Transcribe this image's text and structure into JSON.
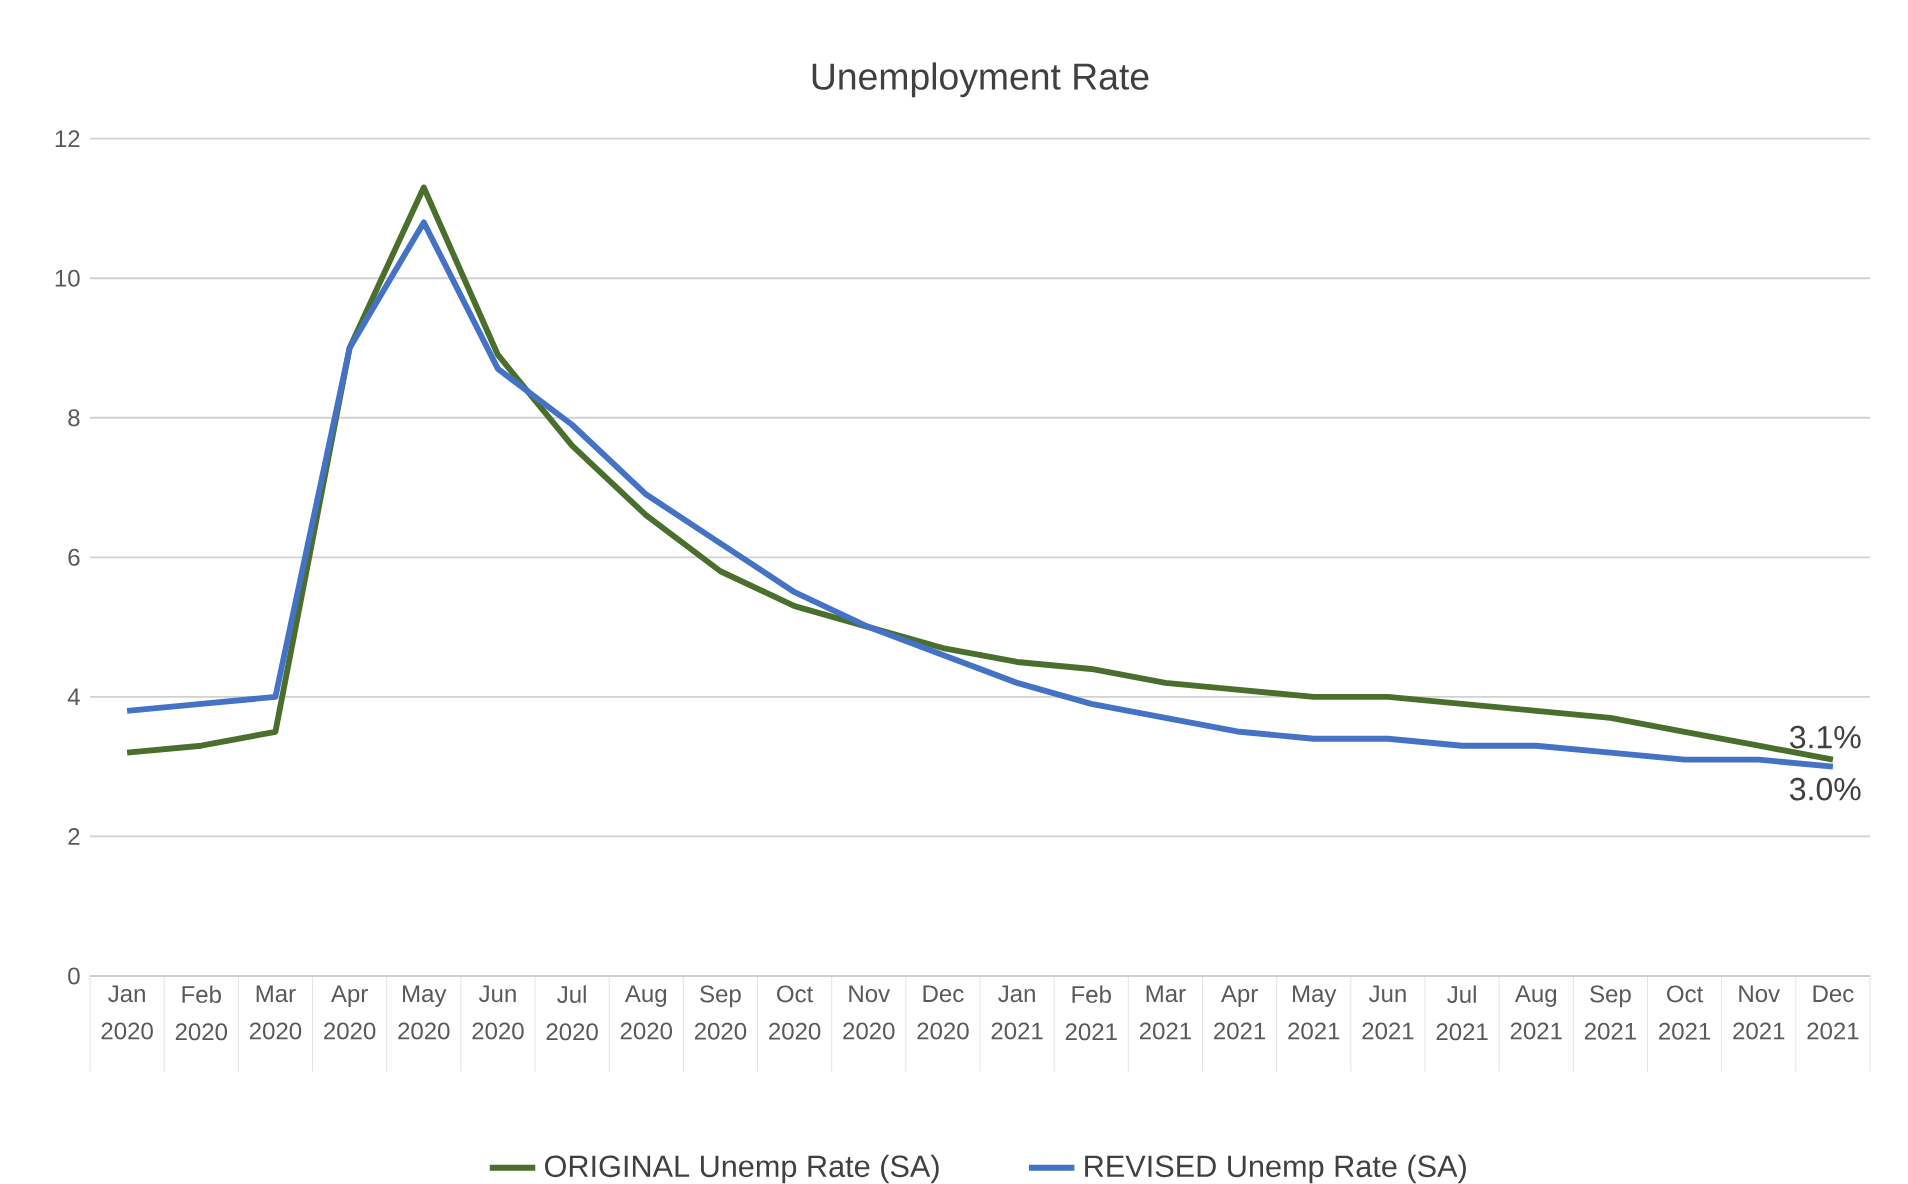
{
  "chart_data": {
    "type": "line",
    "title": "Unemployment Rate",
    "categories": [
      "Jan 2020",
      "Feb 2020",
      "Mar 2020",
      "Apr 2020",
      "May 2020",
      "Jun 2020",
      "Jul 2020",
      "Aug 2020",
      "Sep 2020",
      "Oct 2020",
      "Nov 2020",
      "Dec 2020",
      "Jan 2021",
      "Feb 2021",
      "Mar 2021",
      "Apr 2021",
      "May 2021",
      "Jun 2021",
      "Jul 2021",
      "Aug 2021",
      "Sep 2021",
      "Oct 2021",
      "Nov 2021",
      "Dec 2021"
    ],
    "series": [
      {
        "name": "ORIGINAL Unemp Rate (SA)",
        "color": "#4a6f2c",
        "values": [
          3.2,
          3.3,
          3.5,
          9.0,
          11.3,
          8.9,
          7.6,
          6.6,
          5.8,
          5.3,
          5.0,
          4.7,
          4.5,
          4.4,
          4.2,
          4.1,
          4.0,
          4.0,
          3.9,
          3.8,
          3.7,
          3.5,
          3.3,
          3.1
        ],
        "value_labels": [
          null,
          null,
          null,
          null,
          null,
          null,
          null,
          null,
          null,
          null,
          null,
          null,
          null,
          null,
          null,
          null,
          null,
          null,
          null,
          null,
          null,
          null,
          null,
          "3.1%"
        ]
      },
      {
        "name": "REVISED Unemp Rate (SA)",
        "color": "#4472c4",
        "values": [
          3.8,
          3.9,
          4.0,
          9.0,
          10.8,
          8.7,
          7.9,
          6.9,
          6.2,
          5.5,
          5.0,
          4.6,
          4.2,
          3.9,
          3.7,
          3.5,
          3.4,
          3.4,
          3.3,
          3.3,
          3.2,
          3.1,
          3.1,
          3.0
        ],
        "value_labels": [
          null,
          null,
          null,
          null,
          null,
          null,
          null,
          null,
          null,
          null,
          null,
          null,
          null,
          null,
          null,
          null,
          null,
          null,
          null,
          null,
          null,
          null,
          null,
          "3.0%"
        ]
      }
    ],
    "ylim": [
      0,
      12
    ],
    "yticks": [
      0,
      2,
      4,
      6,
      8,
      10,
      12
    ],
    "grid": "y",
    "legend": "bottom",
    "marker": "none",
    "line_style": "solid"
  }
}
